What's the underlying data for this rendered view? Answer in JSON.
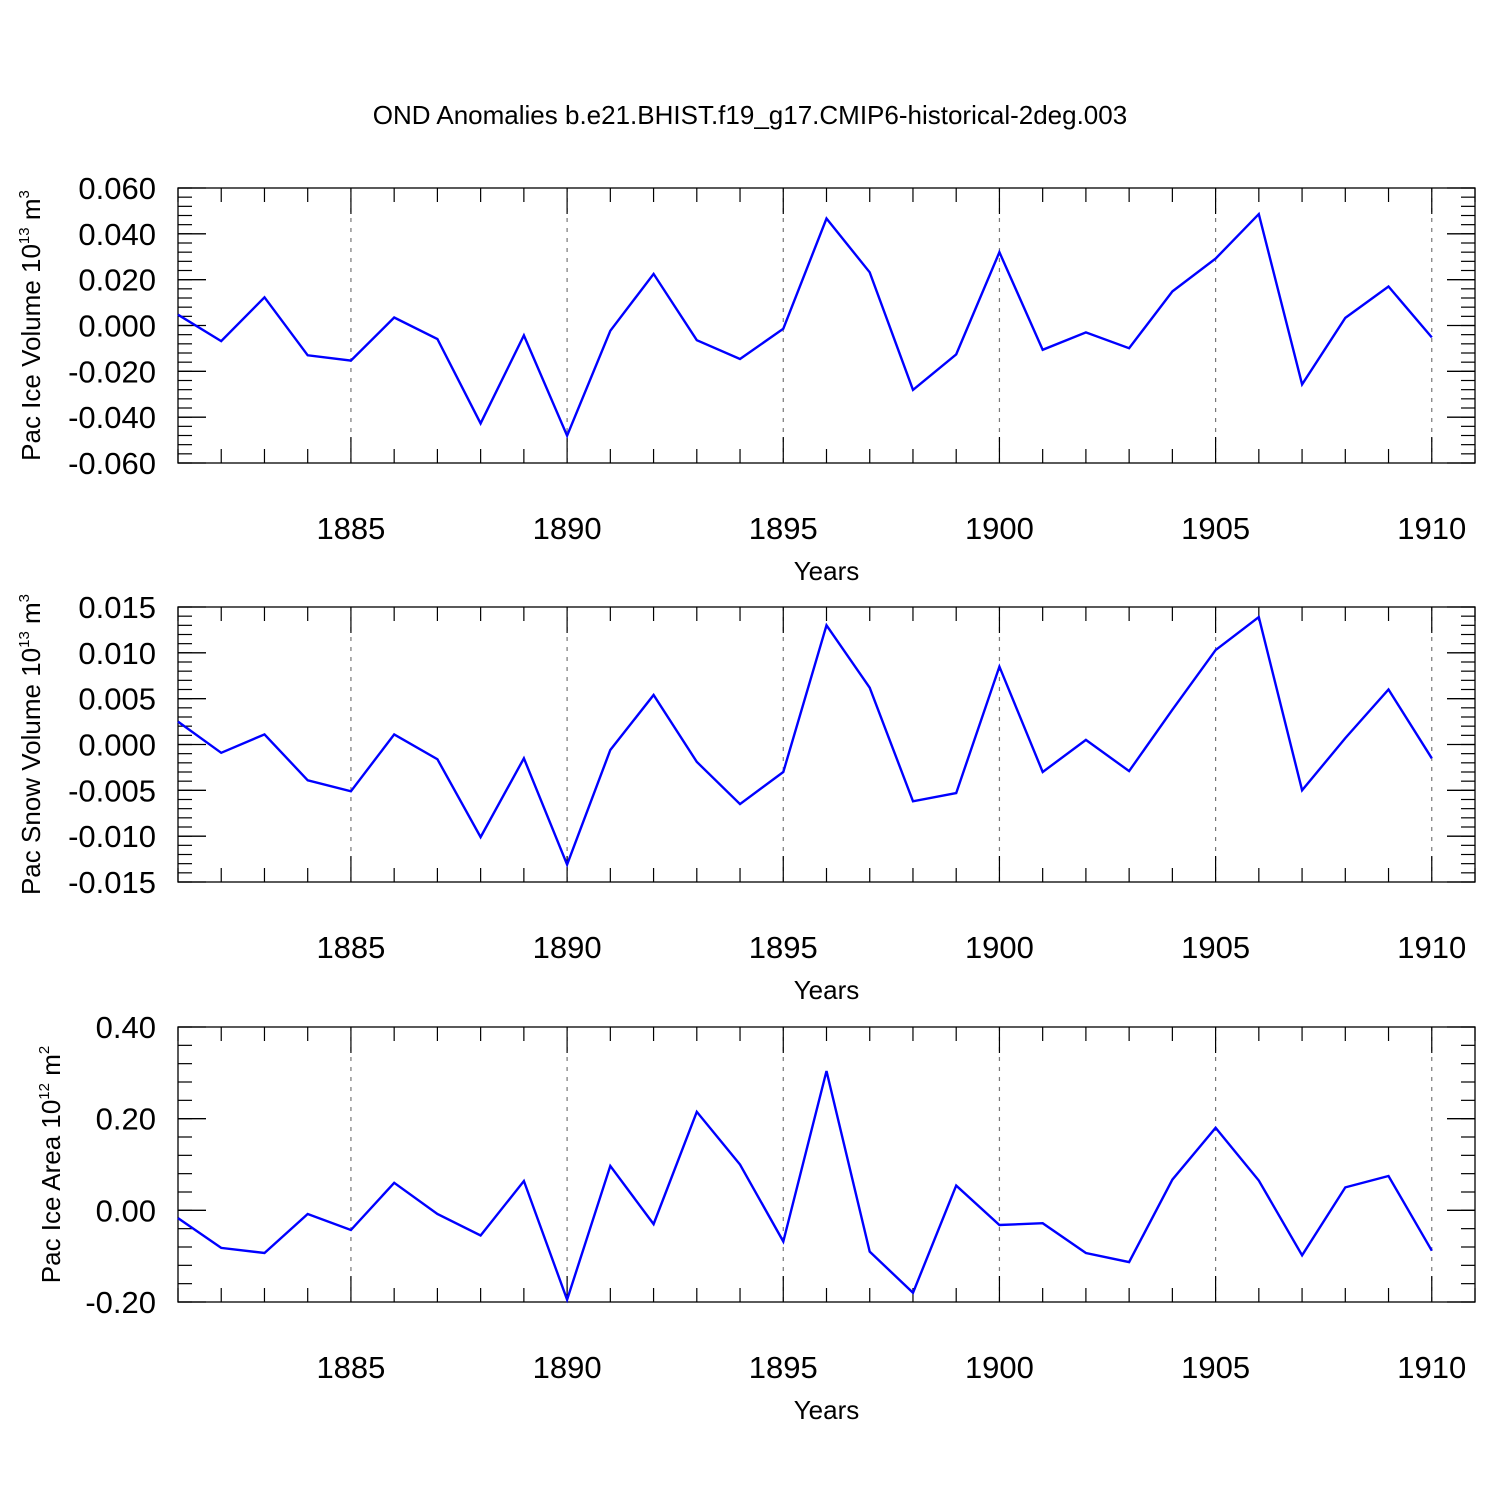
{
  "title": "OND Anomalies b.e21.BHIST.f19_g17.CMIP6-historical-2deg.003",
  "colors": {
    "line": "#0000ff",
    "axis": "#000000",
    "grid": "#777777"
  },
  "chart_data": [
    {
      "type": "line",
      "xlabel": "Years",
      "ylabel": {
        "text": "Pac Ice Volume 10",
        "exponent": "13",
        "unit": "m",
        "unit_exponent": "3"
      },
      "xlim": [
        1881,
        1911
      ],
      "ylim": [
        -0.06,
        0.06
      ],
      "xticks": [
        "1885",
        "1890",
        "1895",
        "1900",
        "1905",
        "1910"
      ],
      "yticks": [
        "0.060",
        "0.040",
        "0.020",
        "0.000",
        "-0.020",
        "-0.040",
        "-0.060"
      ],
      "grid": "dashed vertical at major x ticks",
      "x": [
        1881,
        1882,
        1883,
        1884,
        1885,
        1886,
        1887,
        1888,
        1889,
        1890,
        1891,
        1892,
        1893,
        1894,
        1895,
        1896,
        1897,
        1898,
        1899,
        1900,
        1901,
        1902,
        1903,
        1904,
        1905,
        1906,
        1907,
        1908,
        1909,
        1910
      ],
      "values": [
        0.0047,
        -0.0068,
        0.0123,
        -0.013,
        -0.0153,
        0.0035,
        -0.0059,
        -0.0427,
        -0.0043,
        -0.0481,
        -0.0023,
        0.0225,
        -0.0064,
        -0.0146,
        -0.0014,
        0.0467,
        0.0232,
        -0.0281,
        -0.0126,
        0.032,
        -0.0106,
        -0.003,
        -0.0099,
        0.0149,
        0.0292,
        0.0486,
        -0.0257,
        0.0033,
        0.017,
        -0.0052
      ]
    },
    {
      "type": "line",
      "xlabel": "Years",
      "ylabel": {
        "text": "Pac Snow Volume 10",
        "exponent": "13",
        "unit": "m",
        "unit_exponent": "3"
      },
      "xlim": [
        1881,
        1911
      ],
      "ylim": [
        -0.015,
        0.015
      ],
      "xticks": [
        "1885",
        "1890",
        "1895",
        "1900",
        "1905",
        "1910"
      ],
      "yticks": [
        "0.015",
        "0.010",
        "0.005",
        "0.000",
        "-0.005",
        "-0.010",
        "-0.015"
      ],
      "grid": "dashed vertical at major x ticks",
      "x": [
        1881,
        1882,
        1883,
        1884,
        1885,
        1886,
        1887,
        1888,
        1889,
        1890,
        1891,
        1892,
        1893,
        1894,
        1895,
        1896,
        1897,
        1898,
        1899,
        1900,
        1901,
        1902,
        1903,
        1904,
        1905,
        1906,
        1907,
        1908,
        1909,
        1910
      ],
      "values": [
        0.0025,
        -0.0009,
        0.0011,
        -0.0039,
        -0.0051,
        0.0011,
        -0.0016,
        -0.0101,
        -0.0015,
        -0.0131,
        -0.0006,
        0.0054,
        -0.0019,
        -0.0065,
        -0.003,
        0.013,
        0.0062,
        -0.0062,
        -0.0053,
        0.0085,
        -0.003,
        0.0005,
        -0.0029,
        0.0038,
        0.0103,
        0.0139,
        -0.005,
        0.0007,
        0.006,
        -0.0015
      ]
    },
    {
      "type": "line",
      "xlabel": "Years",
      "ylabel": {
        "text": "Pac Ice Area 10",
        "exponent": "12",
        "unit": "m",
        "unit_exponent": "2"
      },
      "xlim": [
        1881,
        1911
      ],
      "ylim": [
        -0.2,
        0.4
      ],
      "xticks": [
        "1885",
        "1890",
        "1895",
        "1900",
        "1905",
        "1910"
      ],
      "yticks": [
        "0.40",
        "0.20",
        "0.00",
        "-0.20"
      ],
      "grid": "dashed vertical at major x ticks",
      "x": [
        1881,
        1882,
        1883,
        1884,
        1885,
        1886,
        1887,
        1888,
        1889,
        1890,
        1891,
        1892,
        1893,
        1894,
        1895,
        1896,
        1897,
        1898,
        1899,
        1900,
        1901,
        1902,
        1903,
        1904,
        1905,
        1906,
        1907,
        1908,
        1909,
        1910
      ],
      "values": [
        -0.017,
        -0.082,
        -0.093,
        -0.008,
        -0.043,
        0.06,
        -0.008,
        -0.055,
        0.064,
        -0.195,
        0.097,
        -0.03,
        0.215,
        0.1,
        -0.068,
        0.304,
        -0.09,
        -0.18,
        0.054,
        -0.032,
        -0.028,
        -0.093,
        -0.113,
        0.067,
        0.18,
        0.065,
        -0.098,
        0.05,
        0.075,
        -0.088
      ]
    }
  ]
}
